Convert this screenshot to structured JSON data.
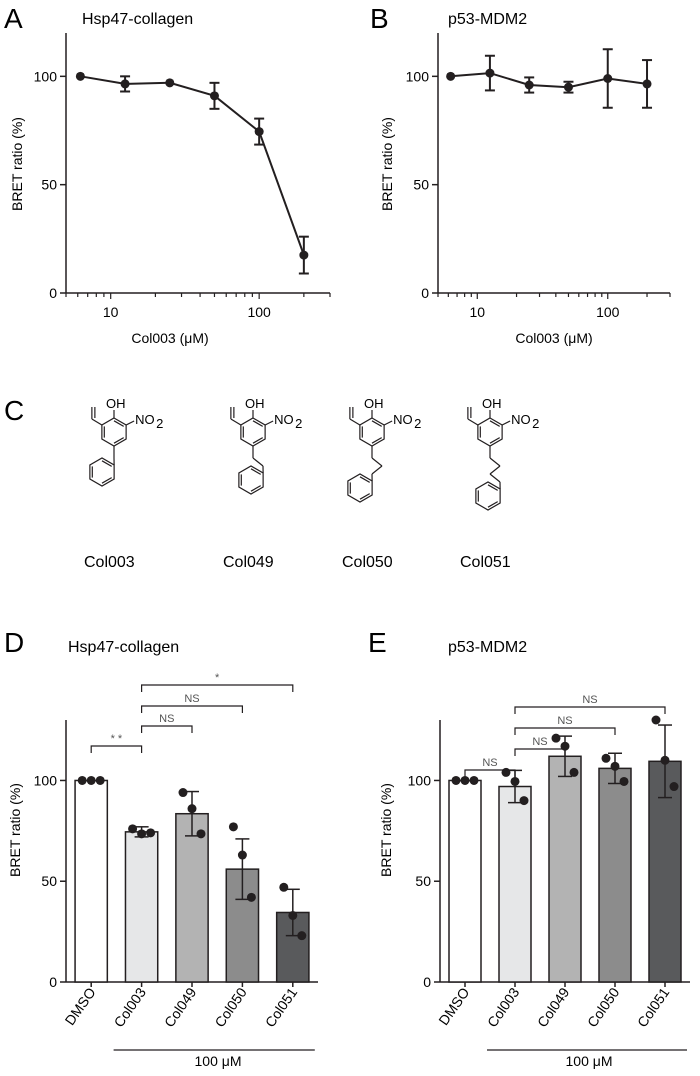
{
  "figure": {
    "panels": {
      "A": "A",
      "B": "B",
      "C": "C",
      "D": "D",
      "E": "E"
    }
  },
  "structures": {
    "atoms": {
      "oh": "OH",
      "no2": "NO",
      "no2_sub": "2"
    },
    "compounds": [
      "Col003",
      "Col049",
      "Col050",
      "Col051"
    ]
  },
  "chart_data": [
    {
      "panel": "A",
      "type": "line",
      "title": "Hsp47-collagen",
      "xlabel": "Col003 (μM)",
      "ylabel": "BRET ratio (%)",
      "xscale": "log",
      "xlim": [
        5,
        300
      ],
      "ylim": [
        0,
        120
      ],
      "xticks": [
        10,
        100
      ],
      "yticks": [
        0,
        50,
        100
      ],
      "color": "#231f20",
      "series": [
        {
          "x": [
            6.25,
            12.5,
            25,
            50,
            100,
            200
          ],
          "y": [
            100,
            96.5,
            97,
            91,
            74.5,
            17.5
          ],
          "err": [
            0,
            3.5,
            0,
            6,
            6,
            8.5
          ]
        }
      ]
    },
    {
      "panel": "B",
      "type": "line",
      "title": "p53-MDM2",
      "xlabel": "Col003 (μM)",
      "ylabel": "BRET ratio (%)",
      "xscale": "log",
      "xlim": [
        5,
        300
      ],
      "ylim": [
        0,
        120
      ],
      "xticks": [
        10,
        100
      ],
      "yticks": [
        0,
        50,
        100
      ],
      "color": "#231f20",
      "series": [
        {
          "x": [
            6.25,
            12.5,
            25,
            50,
            100,
            200
          ],
          "y": [
            100,
            101.5,
            96,
            95,
            99,
            96.5
          ],
          "err": [
            0,
            8,
            3.5,
            2.5,
            13.5,
            11
          ]
        }
      ]
    },
    {
      "panel": "D",
      "type": "bar",
      "title": "Hsp47-collagen",
      "ylabel": "BRET ratio (%)",
      "ylim": [
        0,
        130
      ],
      "yticks": [
        0,
        50,
        100
      ],
      "categories": [
        "DMSO",
        "Col003",
        "Col049",
        "Col050",
        "Col051"
      ],
      "values": [
        100,
        74.5,
        83.5,
        56,
        34.5
      ],
      "errors": [
        0,
        2.5,
        11,
        15,
        11.5
      ],
      "points": [
        [
          100,
          100,
          100
        ],
        [
          76,
          73.5,
          74
        ],
        [
          94,
          86,
          73.5
        ],
        [
          77,
          63,
          42
        ],
        [
          47,
          33,
          23
        ]
      ],
      "bar_colors": [
        "#ffffff",
        "#e6e7e8",
        "#b3b3b3",
        "#8c8c8c",
        "#595a5c"
      ],
      "group_label": "100 μM",
      "significance": [
        {
          "from": "DMSO",
          "to": "Col003",
          "label": "* *"
        },
        {
          "from": "Col003",
          "to": "Col049",
          "label": "NS"
        },
        {
          "from": "Col003",
          "to": "Col050",
          "label": "NS"
        },
        {
          "from": "Col003",
          "to": "Col051",
          "label": "*"
        }
      ]
    },
    {
      "panel": "E",
      "type": "bar",
      "title": "p53-MDM2",
      "ylabel": "BRET ratio (%)",
      "ylim": [
        0,
        130
      ],
      "yticks": [
        0,
        50,
        100
      ],
      "categories": [
        "DMSO",
        "Col003",
        "Col049",
        "Col050",
        "Col051"
      ],
      "values": [
        100,
        97,
        112,
        106,
        109.5
      ],
      "errors": [
        0,
        8,
        10,
        7.5,
        18
      ],
      "points": [
        [
          100,
          100,
          100
        ],
        [
          104,
          99.5,
          90
        ],
        [
          121,
          117,
          104
        ],
        [
          111,
          107,
          99.5
        ],
        [
          130,
          110,
          97
        ]
      ],
      "bar_colors": [
        "#ffffff",
        "#e6e7e8",
        "#b3b3b3",
        "#8c8c8c",
        "#595a5c"
      ],
      "group_label": "100 μM",
      "significance": [
        {
          "from": "DMSO",
          "to": "Col003",
          "label": "NS"
        },
        {
          "from": "Col003",
          "to": "Col049",
          "label": "NS"
        },
        {
          "from": "Col003",
          "to": "Col050",
          "label": "NS"
        },
        {
          "from": "Col003",
          "to": "Col051",
          "label": "NS"
        }
      ]
    }
  ]
}
